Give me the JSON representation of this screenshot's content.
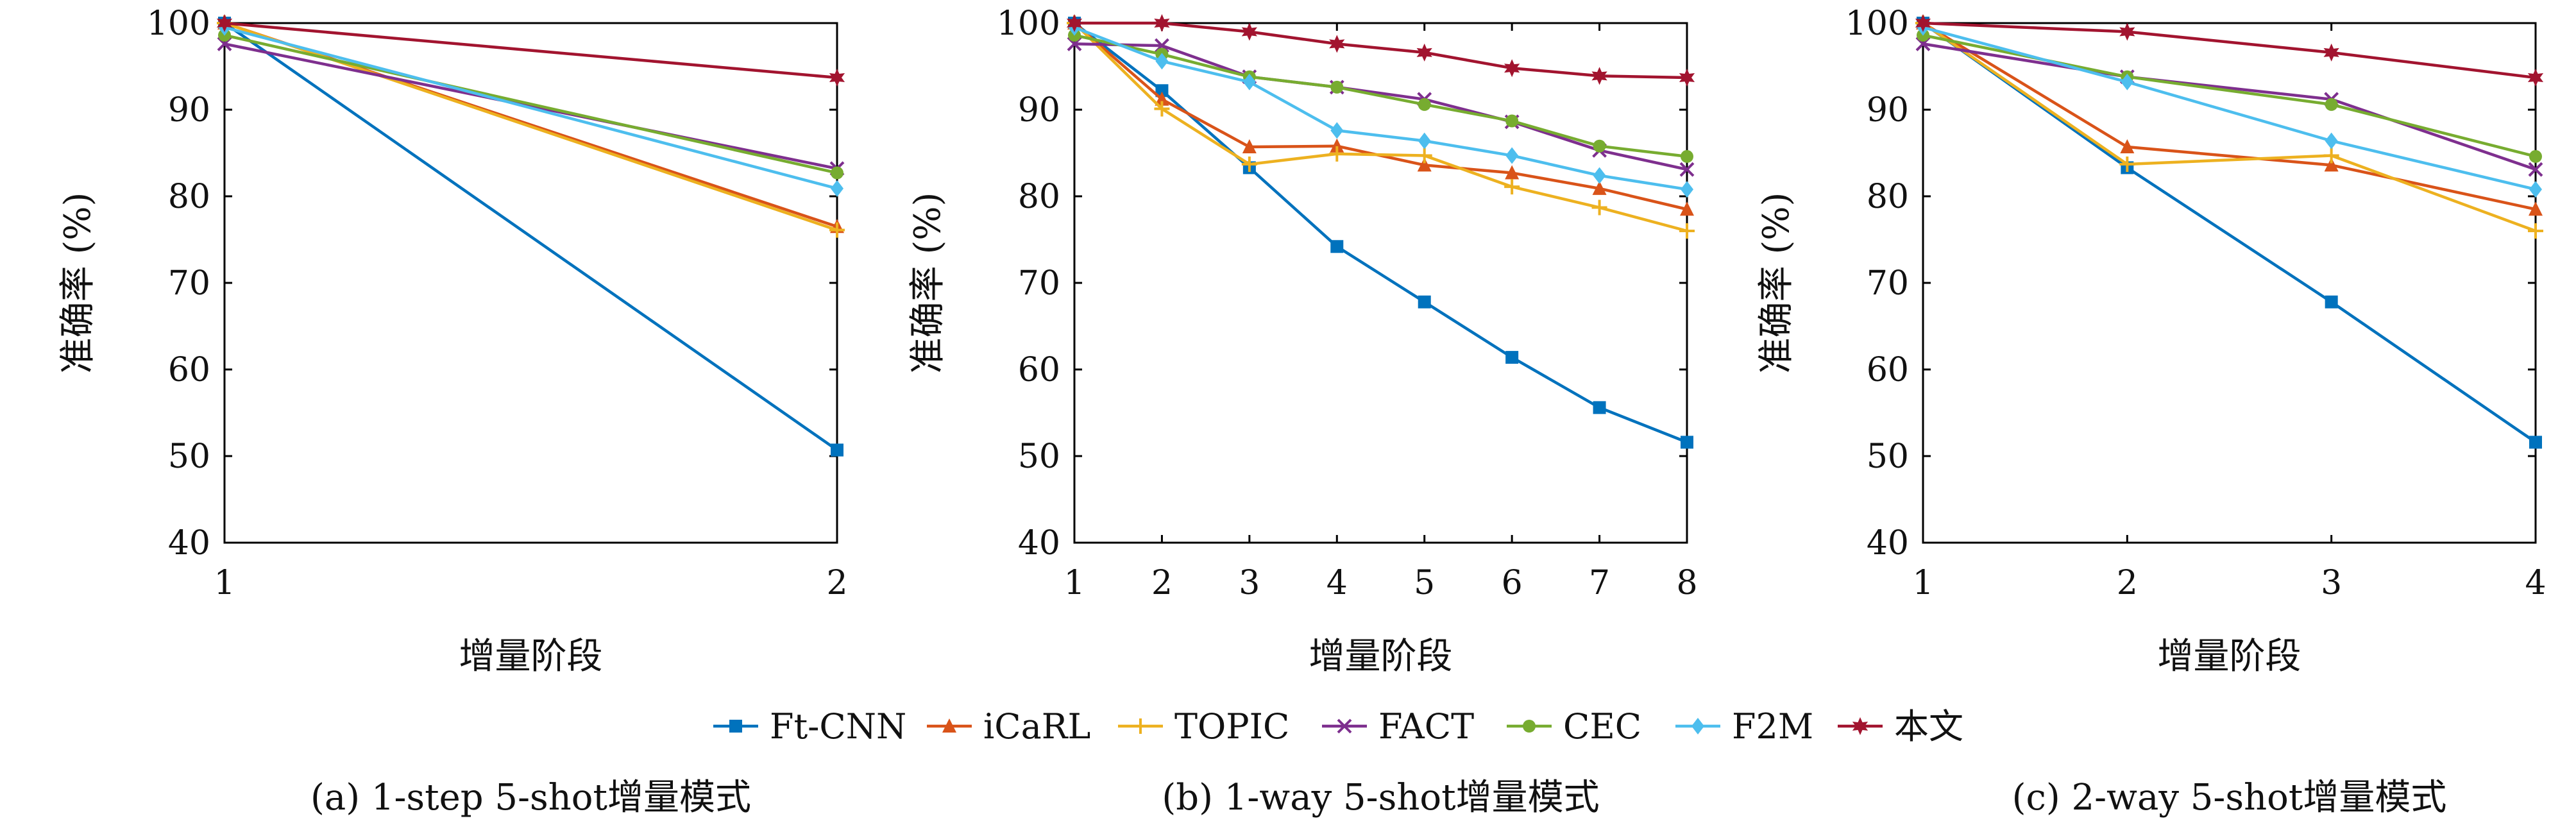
{
  "colors": {
    "Ft-CNN": "#0072BD",
    "iCaRL": "#D95319",
    "TOPIC": "#EDB120",
    "FACT": "#7E2F8E",
    "CEC": "#77AC30",
    "F2M": "#4DBEEE",
    "本文": "#A2142F"
  },
  "markers": {
    "Ft-CNN": "square",
    "iCaRL": "triangle",
    "TOPIC": "plus",
    "FACT": "x",
    "CEC": "circle",
    "F2M": "diamond",
    "本文": "star"
  },
  "legend": [
    "Ft-CNN",
    "iCaRL",
    "TOPIC",
    "FACT",
    "CEC",
    "F2M",
    "本文"
  ],
  "chart_data": [
    {
      "type": "line",
      "caption": "(a) 1-step 5-shot增量模式",
      "xlabel": "增量阶段",
      "ylabel": "准确率 (%)",
      "x": [
        1,
        2
      ],
      "xlim": [
        1,
        2
      ],
      "ylim": [
        40,
        100
      ],
      "yticks": [
        40,
        50,
        60,
        70,
        80,
        90,
        100
      ],
      "series": [
        {
          "name": "Ft-CNN",
          "values": [
            100,
            50.7
          ]
        },
        {
          "name": "iCaRL",
          "values": [
            100,
            76.5
          ]
        },
        {
          "name": "TOPIC",
          "values": [
            100,
            76.1
          ]
        },
        {
          "name": "FACT",
          "values": [
            97.6,
            83.2
          ]
        },
        {
          "name": "CEC",
          "values": [
            98.6,
            82.7
          ]
        },
        {
          "name": "F2M",
          "values": [
            99.5,
            80.9
          ]
        },
        {
          "name": "本文",
          "values": [
            100,
            93.7
          ]
        }
      ]
    },
    {
      "type": "line",
      "caption": "(b) 1-way 5-shot增量模式",
      "xlabel": "增量阶段",
      "ylabel": "准确率 (%)",
      "x": [
        1,
        2,
        3,
        4,
        5,
        6,
        7,
        8
      ],
      "xlim": [
        1,
        8
      ],
      "ylim": [
        40,
        100
      ],
      "yticks": [
        40,
        50,
        60,
        70,
        80,
        90,
        100
      ],
      "series": [
        {
          "name": "Ft-CNN",
          "values": [
            100,
            92.2,
            83.3,
            74.2,
            67.8,
            61.4,
            55.6,
            51.6
          ]
        },
        {
          "name": "iCaRL",
          "values": [
            100,
            91.2,
            85.7,
            85.8,
            83.6,
            82.7,
            80.9,
            78.5
          ]
        },
        {
          "name": "TOPIC",
          "values": [
            100,
            90.1,
            83.7,
            84.9,
            84.7,
            81.1,
            78.7,
            76.0
          ]
        },
        {
          "name": "FACT",
          "values": [
            97.6,
            97.4,
            93.8,
            92.6,
            91.2,
            88.6,
            85.3,
            83.1
          ]
        },
        {
          "name": "CEC",
          "values": [
            98.6,
            96.4,
            93.8,
            92.6,
            90.6,
            88.7,
            85.8,
            84.6
          ]
        },
        {
          "name": "F2M",
          "values": [
            99.5,
            95.6,
            93.2,
            87.6,
            86.4,
            84.7,
            82.4,
            80.8
          ]
        },
        {
          "name": "本文",
          "values": [
            100,
            100,
            99.0,
            97.6,
            96.6,
            94.8,
            93.9,
            93.7
          ]
        }
      ]
    },
    {
      "type": "line",
      "caption": "(c) 2-way 5-shot增量模式",
      "xlabel": "增量阶段",
      "ylabel": "准确率 (%)",
      "x": [
        1,
        2,
        3,
        4
      ],
      "xlim": [
        1,
        4
      ],
      "ylim": [
        40,
        100
      ],
      "yticks": [
        40,
        50,
        60,
        70,
        80,
        90,
        100
      ],
      "series": [
        {
          "name": "Ft-CNN",
          "values": [
            100,
            83.3,
            67.8,
            51.6
          ]
        },
        {
          "name": "iCaRL",
          "values": [
            100,
            85.7,
            83.6,
            78.5
          ]
        },
        {
          "name": "TOPIC",
          "values": [
            100,
            83.7,
            84.7,
            76.0
          ]
        },
        {
          "name": "FACT",
          "values": [
            97.6,
            93.8,
            91.2,
            83.1
          ]
        },
        {
          "name": "CEC",
          "values": [
            98.6,
            93.8,
            90.6,
            84.6
          ]
        },
        {
          "name": "F2M",
          "values": [
            99.5,
            93.2,
            86.4,
            80.8
          ]
        },
        {
          "name": "本文",
          "values": [
            100,
            99.0,
            96.6,
            93.7
          ]
        }
      ]
    }
  ]
}
